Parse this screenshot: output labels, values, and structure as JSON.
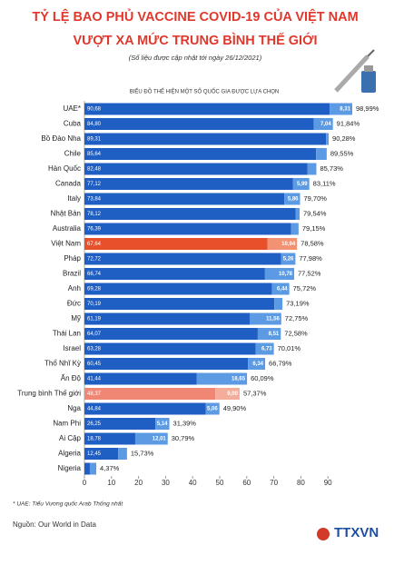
{
  "chart_data": {
    "type": "stacked-bar-horizontal",
    "title": [
      "TỶ LỆ BAO PHỦ VACCINE COVID-19 CỦA VIỆT NAM",
      "VƯỢT XA MỨC TRUNG BÌNH THẾ GIỚI"
    ],
    "subtitle": "(Số liệu được cập nhật tới ngày 26/12/2021)",
    "chart_title": "BIỂU ĐỒ THỂ HIỆN MỘT SỐ QUỐC GIA ĐƯỢC LỰA CHỌN",
    "categories": [
      "UAE*",
      "Cuba",
      "Bồ Đào Nha",
      "Chile",
      "Hàn Quốc",
      "Canada",
      "Italy",
      "Nhật Bản",
      "Australia",
      "Việt Nam",
      "Pháp",
      "Brazil",
      "Anh",
      "Đức",
      "Mỹ",
      "Thái Lan",
      "Israel",
      "Thổ Nhĩ Kỳ",
      "Ấn Độ",
      "Trung bình Thế giới",
      "Nga",
      "Nam Phi",
      "Ai Cập",
      "Algeria",
      "Nigeria"
    ],
    "series": [
      {
        "color": "#1f5fc4",
        "values": [
          90.68,
          84.8,
          89.31,
          85.64,
          82.48,
          77.12,
          73.84,
          78.12,
          76.39,
          67.64,
          72.72,
          66.74,
          69.28,
          70.19,
          61.19,
          64.07,
          63.28,
          60.45,
          41.44,
          48.37,
          44.84,
          26.25,
          18.78,
          12.45,
          2.0
        ],
        "value_labels": [
          "90,68",
          "84,80",
          "89,31",
          "85,64",
          "82,48",
          "77,12",
          "73,84",
          "78,12",
          "76,39",
          "67,64",
          "72,72",
          "66,74",
          "69,28",
          "70,19",
          "61,19",
          "64,07",
          "63,28",
          "60,45",
          "41,44",
          "48,37",
          "44,84",
          "26,25",
          "18,78",
          "12,45",
          null
        ]
      },
      {
        "color": "#5c9be3",
        "values": [
          8.31,
          7.04,
          0.97,
          3.91,
          3.25,
          5.99,
          5.86,
          1.42,
          2.76,
          10.94,
          5.26,
          10.78,
          6.44,
          3.0,
          11.56,
          8.51,
          6.73,
          6.34,
          18.65,
          9.0,
          5.06,
          5.14,
          12.01,
          3.28,
          2.37
        ],
        "value_labels": [
          "8,31",
          "7,04",
          null,
          null,
          null,
          "5,99",
          "5,86",
          null,
          null,
          "10,94",
          "5,26",
          "10,78",
          "6,44",
          null,
          "11,56",
          "8,51",
          "6,73",
          "6,34",
          "18,65",
          "9,00",
          "5,06",
          "5,14",
          "12,01",
          null,
          null
        ]
      }
    ],
    "highlights": [
      {
        "index": 9,
        "colors": [
          "#e8502c",
          "#f29272"
        ]
      },
      {
        "index": 19,
        "colors": [
          "#ef8774",
          "#f5ad9b"
        ]
      }
    ],
    "totals": [
      98.99,
      91.84,
      90.28,
      89.55,
      85.73,
      83.11,
      79.7,
      79.54,
      79.15,
      78.58,
      77.98,
      77.52,
      75.72,
      73.19,
      72.75,
      72.58,
      70.01,
      66.79,
      60.09,
      57.37,
      49.9,
      31.39,
      30.79,
      15.73,
      4.37
    ],
    "total_labels": [
      "98,99%",
      "91,84%",
      "90,28%",
      "89,55%",
      "85,73%",
      "83,11%",
      "79,70%",
      "79,54%",
      "79,15%",
      "78,58%",
      "77,98%",
      "77,52%",
      "75,72%",
      "73,19%",
      "72,75%",
      "72,58%",
      "70,01%",
      "66,79%",
      "60,09%",
      "57,37%",
      "49,90%",
      "31,39%",
      "30,79%",
      "15,73%",
      "4,37%"
    ],
    "xlim": [
      0,
      100
    ],
    "xticks": [
      0,
      10,
      20,
      30,
      40,
      50,
      60,
      70,
      80,
      90
    ],
    "footnote": "* UAE: Tiểu Vương quốc Arab Thống nhất",
    "source": "Nguồn: Our World in Data",
    "logo": "TTXVN"
  }
}
